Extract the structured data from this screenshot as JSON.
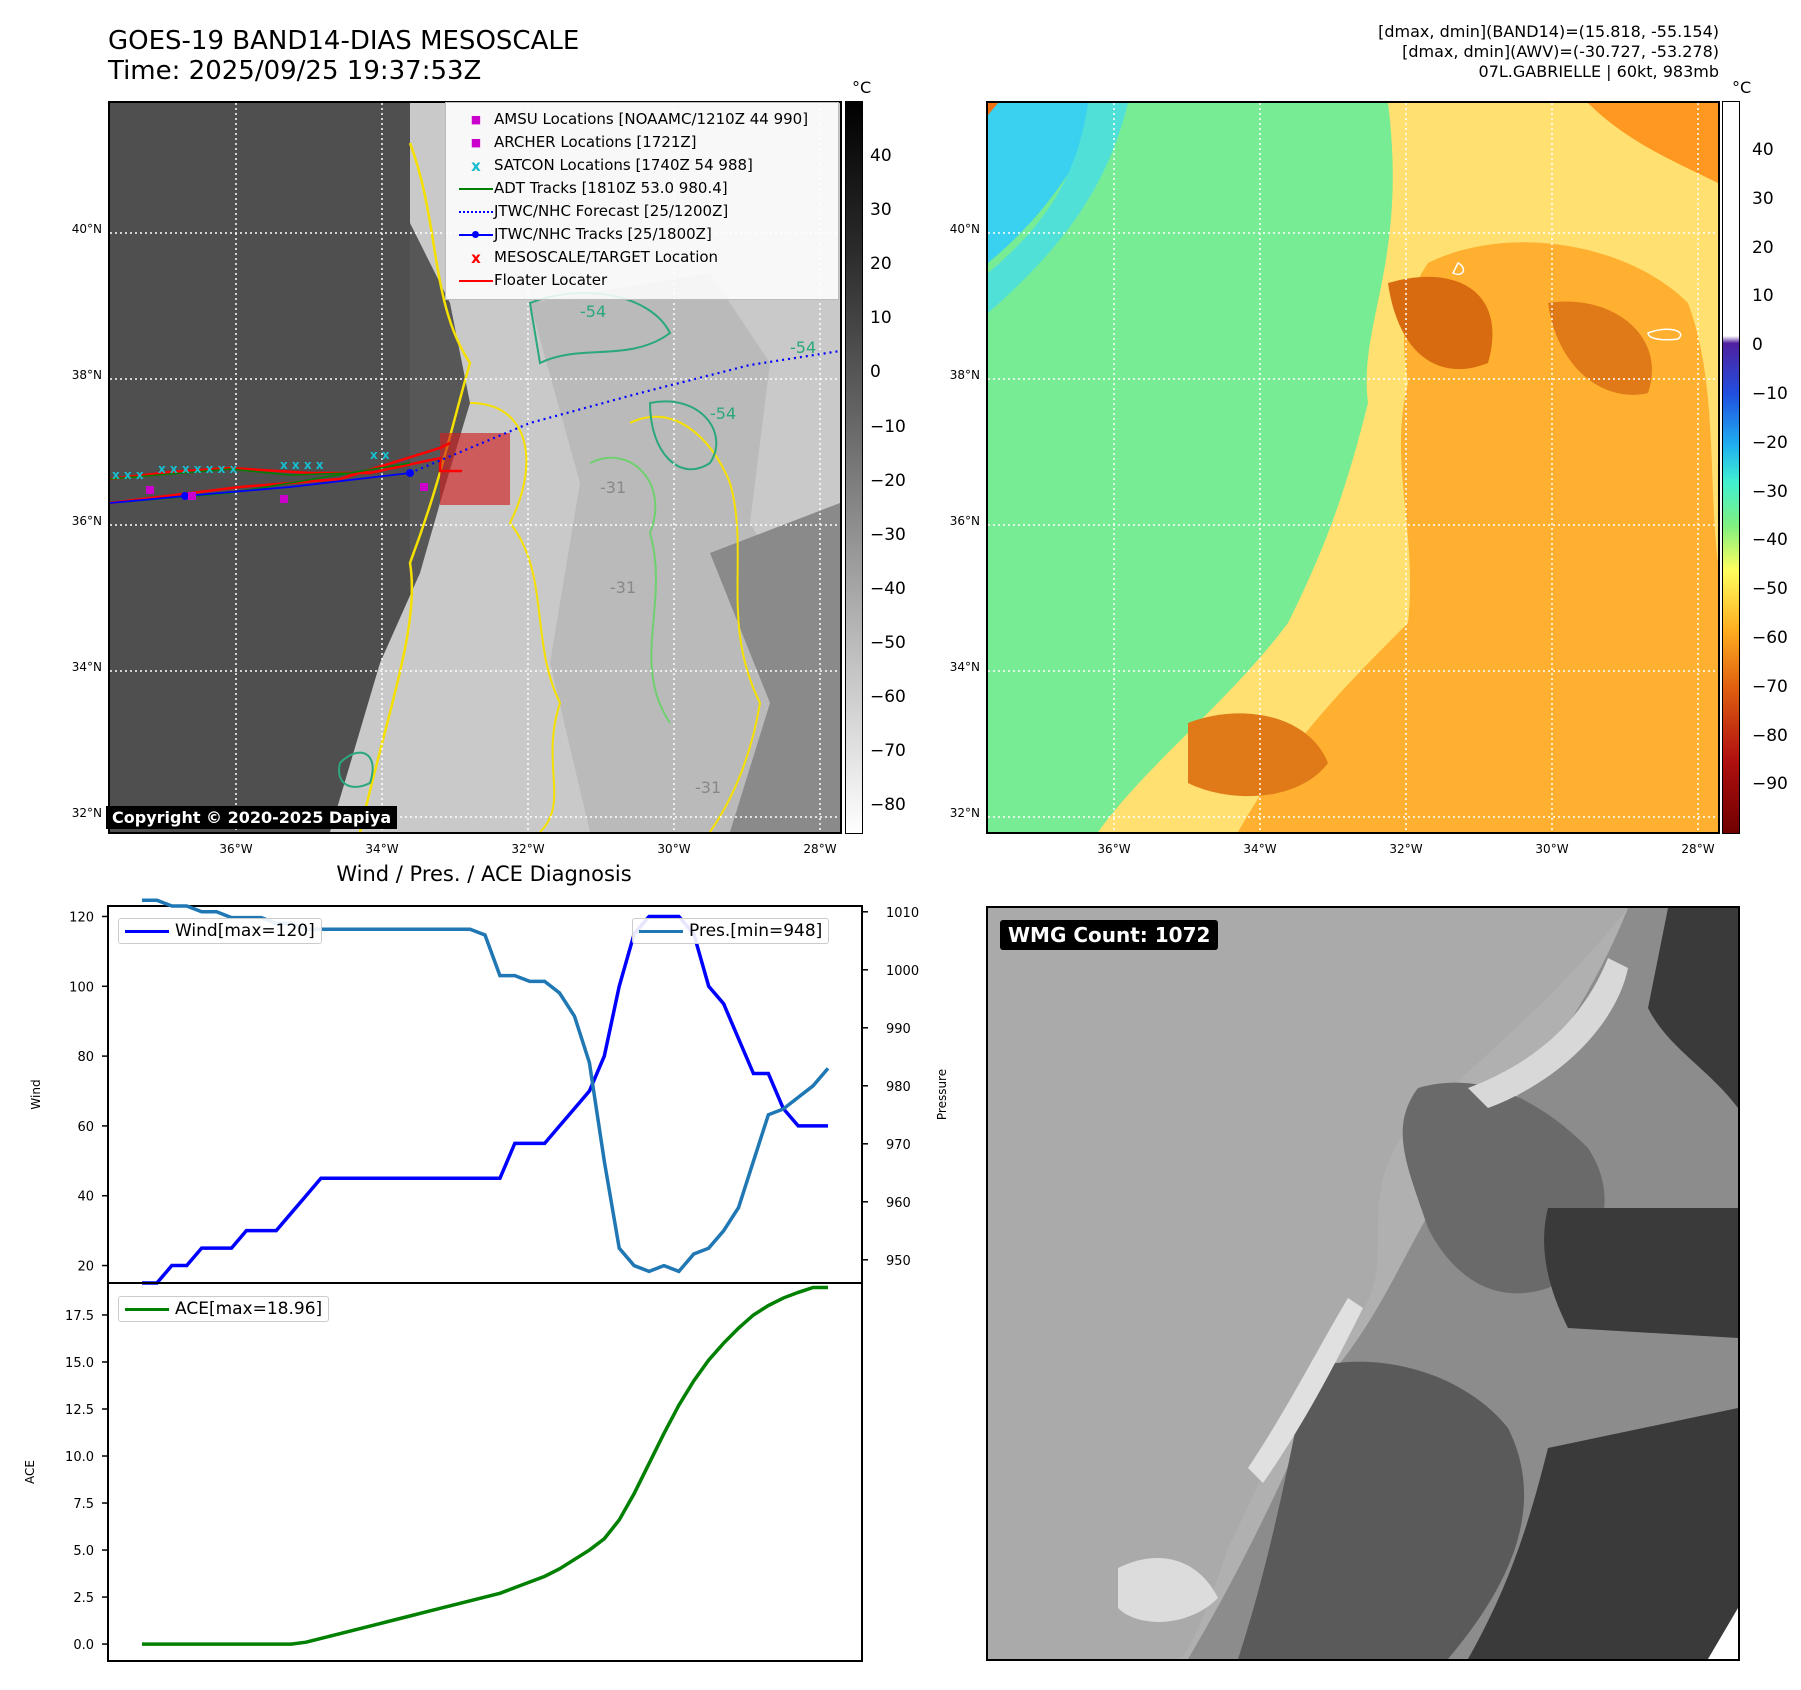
{
  "header": {
    "title_line1": "GOES-19 BAND14-DIAS MESOSCALE",
    "title_line2": "Time: 2025/09/25 19:37:53Z",
    "info_line1": "[dmax, dmin](BAND14)=(15.818, -55.154)",
    "info_line2": "[dmax, dmin](AWV)=(-30.727, -53.278)",
    "info_line3": "07L.GABRIELLE | 60kt, 983mb"
  },
  "map": {
    "lat_labels": [
      "40°N",
      "38°N",
      "36°N",
      "34°N",
      "32°N"
    ],
    "lon_labels": [
      "36°W",
      "34°W",
      "32°W",
      "30°W",
      "28°W"
    ],
    "copyright": "Copyright © 2020-2025 Dapiya",
    "contour_labels": [
      "-54",
      "-54",
      "-54",
      "-31",
      "-31",
      "-31"
    ],
    "legend": [
      {
        "label": "AMSU Locations [NOAAMC/1210Z 44 990]",
        "symbol": "■",
        "color": "#cc00cc"
      },
      {
        "label": "ARCHER Locations [1721Z]",
        "symbol": "■",
        "color": "#cc00cc"
      },
      {
        "label": "SATCON Locations [1740Z 54 988]",
        "symbol": "x",
        "color": "#17becf"
      },
      {
        "label": "ADT Tracks [1810Z 53.0 980.4]",
        "symbol": "line",
        "color": "#008000"
      },
      {
        "label": "JTWC/NHC Forecast [25/1200Z]",
        "symbol": "dotted",
        "color": "#0000ff"
      },
      {
        "label": "JTWC/NHC Tracks [25/1800Z]",
        "symbol": "line-dot",
        "color": "#0000ff"
      },
      {
        "label": "MESOSCALE/TARGET Location",
        "symbol": "x",
        "color": "#ff0000"
      },
      {
        "label": "Floater Locater",
        "symbol": "line",
        "color": "#ff0000"
      }
    ]
  },
  "colorbar_gray": {
    "unit": "°C",
    "ticks": [
      "40",
      "30",
      "20",
      "10",
      "0",
      "−10",
      "−20",
      "−30",
      "−40",
      "−50",
      "−60",
      "−70",
      "−80"
    ]
  },
  "colorbar_color": {
    "unit": "°C",
    "ticks": [
      "40",
      "30",
      "20",
      "10",
      "0",
      "−10",
      "−20",
      "−30",
      "−40",
      "−50",
      "−60",
      "−70",
      "−80",
      "−90"
    ]
  },
  "wmg": {
    "label": "WMG Count: 1072"
  },
  "chart_data": [
    {
      "type": "line",
      "title": "Wind / Pres. / ACE Diagnosis",
      "ylabel": "Wind",
      "ylabel_right": "Pressure",
      "ylim": [
        15,
        123
      ],
      "ylim_right": [
        946,
        1011
      ],
      "yticks": [
        20,
        40,
        60,
        80,
        100,
        120
      ],
      "yticks_right": [
        950,
        960,
        970,
        980,
        990,
        1000,
        1010
      ],
      "series": [
        {
          "name": "Wind[max=120]",
          "color": "#0000ff",
          "x": [
            0,
            1,
            2,
            3,
            4,
            5,
            6,
            7,
            8,
            9,
            10,
            11,
            12,
            13,
            14,
            15,
            16,
            17,
            18,
            19,
            20,
            21,
            22,
            23,
            24,
            25,
            26,
            27,
            28,
            29,
            30,
            31,
            32,
            33,
            34,
            35,
            36,
            37,
            38,
            39,
            40,
            41,
            42,
            43,
            44,
            45,
            46
          ],
          "values": [
            15,
            15,
            20,
            20,
            25,
            25,
            25,
            30,
            30,
            30,
            35,
            40,
            45,
            45,
            45,
            45,
            45,
            45,
            45,
            45,
            45,
            45,
            45,
            45,
            45,
            55,
            55,
            55,
            60,
            65,
            70,
            80,
            100,
            115,
            120,
            120,
            120,
            115,
            100,
            95,
            85,
            75,
            75,
            65,
            60,
            60,
            60
          ]
        },
        {
          "name": "Pres.[min=948]",
          "color": "#1f77b4",
          "x": [
            0,
            1,
            2,
            3,
            4,
            5,
            6,
            7,
            8,
            9,
            10,
            11,
            12,
            13,
            14,
            15,
            16,
            17,
            18,
            19,
            20,
            21,
            22,
            23,
            24,
            25,
            26,
            27,
            28,
            29,
            30,
            31,
            32,
            33,
            34,
            35,
            36,
            37,
            38,
            39,
            40,
            41,
            42,
            43,
            44,
            45,
            46
          ],
          "values": [
            1012,
            1012,
            1011,
            1011,
            1010,
            1010,
            1009,
            1009,
            1009,
            1008,
            1008,
            1007,
            1007,
            1007,
            1007,
            1007,
            1007,
            1007,
            1007,
            1007,
            1007,
            1007,
            1007,
            1006,
            999,
            999,
            998,
            998,
            996,
            992,
            984,
            967,
            952,
            949,
            948,
            949,
            948,
            951,
            952,
            955,
            959,
            967,
            975,
            976,
            978,
            980,
            983
          ]
        }
      ]
    },
    {
      "type": "line",
      "ylabel": "ACE",
      "ylim": [
        -0.9,
        19.2
      ],
      "yticks": [
        0.0,
        2.5,
        5.0,
        7.5,
        10.0,
        12.5,
        15.0,
        17.5
      ],
      "ytick_labels": [
        "0.0",
        "2.5",
        "5.0",
        "7.5",
        "10.0",
        "12.5",
        "15.0",
        "17.5"
      ],
      "series": [
        {
          "name": "ACE[max=18.96]",
          "color": "#008000",
          "x": [
            0,
            1,
            2,
            3,
            4,
            5,
            6,
            7,
            8,
            9,
            10,
            11,
            12,
            13,
            14,
            15,
            16,
            17,
            18,
            19,
            20,
            21,
            22,
            23,
            24,
            25,
            26,
            27,
            28,
            29,
            30,
            31,
            32,
            33,
            34,
            35,
            36,
            37,
            38,
            39,
            40,
            41,
            42,
            43,
            44,
            45,
            46
          ],
          "values": [
            0,
            0,
            0,
            0,
            0,
            0,
            0,
            0,
            0,
            0,
            0,
            0.1,
            0.3,
            0.5,
            0.7,
            0.9,
            1.1,
            1.3,
            1.5,
            1.7,
            1.9,
            2.1,
            2.3,
            2.5,
            2.7,
            3.0,
            3.3,
            3.6,
            4.0,
            4.5,
            5.0,
            5.6,
            6.6,
            8.0,
            9.6,
            11.2,
            12.7,
            14.0,
            15.1,
            16.0,
            16.8,
            17.5,
            18.0,
            18.4,
            18.7,
            18.96,
            18.96
          ]
        }
      ]
    }
  ]
}
